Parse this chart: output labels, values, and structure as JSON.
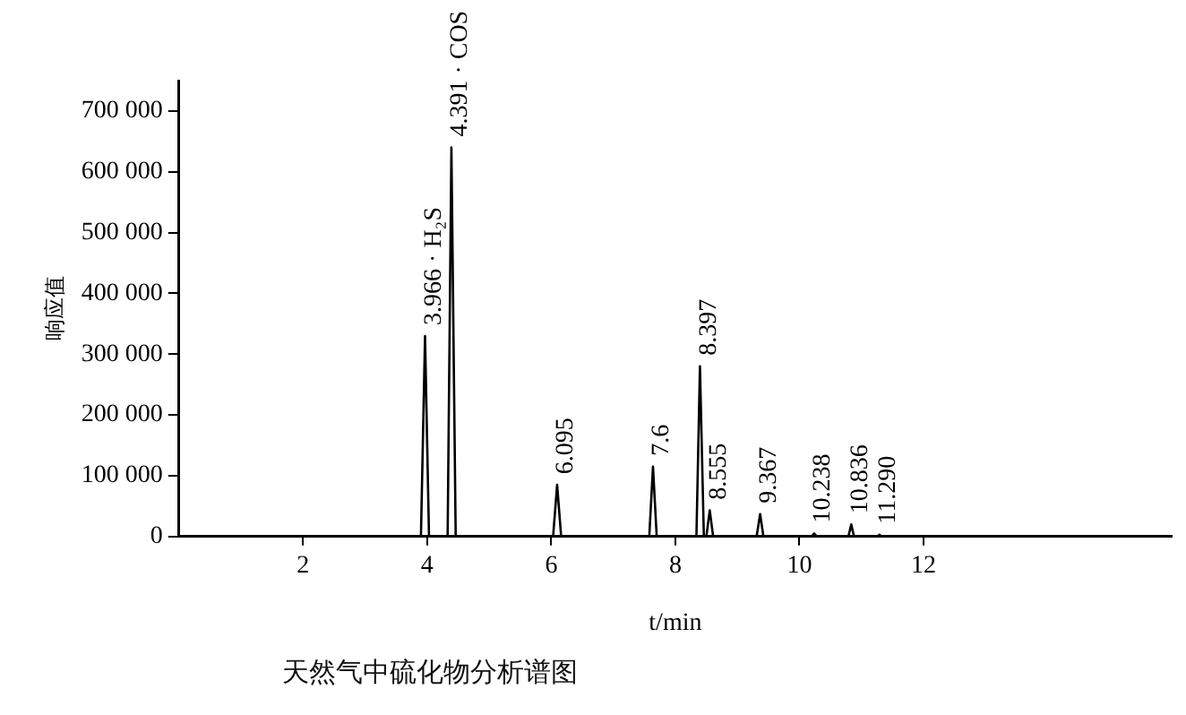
{
  "chart_data": {
    "type": "line",
    "xlabel": "t/min",
    "ylabel": "响应值",
    "x": [
      0,
      3.9,
      3.966,
      4.03,
      4.33,
      4.391,
      4.46,
      6.03,
      6.095,
      6.16,
      7.58,
      7.64,
      7.7,
      8.34,
      8.397,
      8.46,
      8.5,
      8.555,
      8.61,
      9.31,
      9.367,
      9.42,
      10.2,
      10.238,
      10.28,
      10.79,
      10.836,
      10.88,
      11.26,
      11.29,
      11.32,
      16
    ],
    "series": [
      {
        "color": "#000000",
        "values": [
          0,
          0,
          330000,
          0,
          0,
          640000,
          0,
          0,
          85000,
          0,
          0,
          115000,
          0,
          0,
          280000,
          0,
          0,
          43000,
          0,
          0,
          37000,
          0,
          0,
          5000,
          0,
          0,
          20000,
          0,
          0,
          3000,
          0,
          0
        ]
      }
    ],
    "xlim": [
      0,
      16
    ],
    "xticks": [
      2,
      4,
      6,
      8,
      10,
      12
    ],
    "ylim": [
      0,
      750000
    ],
    "yticks": [
      {
        "value": 0,
        "label": "0"
      },
      {
        "value": 100000,
        "label": "100 000"
      },
      {
        "value": 200000,
        "label": "200 000"
      },
      {
        "value": 300000,
        "label": "300 000"
      },
      {
        "value": 400000,
        "label": "400 000"
      },
      {
        "value": 500000,
        "label": "500 000"
      },
      {
        "value": 600000,
        "label": "600 000"
      },
      {
        "value": 700000,
        "label": "700 000"
      }
    ],
    "grid": false,
    "legend": false,
    "marker": "none",
    "line_style": "solid",
    "annotations": [
      {
        "text": "3.966 · H₂S",
        "x": 3.966,
        "y": 330000
      },
      {
        "text": "4.391 · COS",
        "x": 4.391,
        "y": 640000
      },
      {
        "text": "6.095",
        "x": 6.095,
        "y": 85000
      },
      {
        "text": "7.6",
        "x": 7.64,
        "y": 115000
      },
      {
        "text": "8.397",
        "x": 8.397,
        "y": 280000
      },
      {
        "text": "8.555",
        "x": 8.555,
        "y": 43000
      },
      {
        "text": "9.367",
        "x": 9.367,
        "y": 37000
      },
      {
        "text": "10.238",
        "x": 10.238,
        "y": 5000
      },
      {
        "text": "10.836",
        "x": 10.836,
        "y": 20000
      },
      {
        "text": "11.290",
        "x": 11.29,
        "y": 3000
      },
      "天然气中硫化物分析谱图"
    ]
  }
}
